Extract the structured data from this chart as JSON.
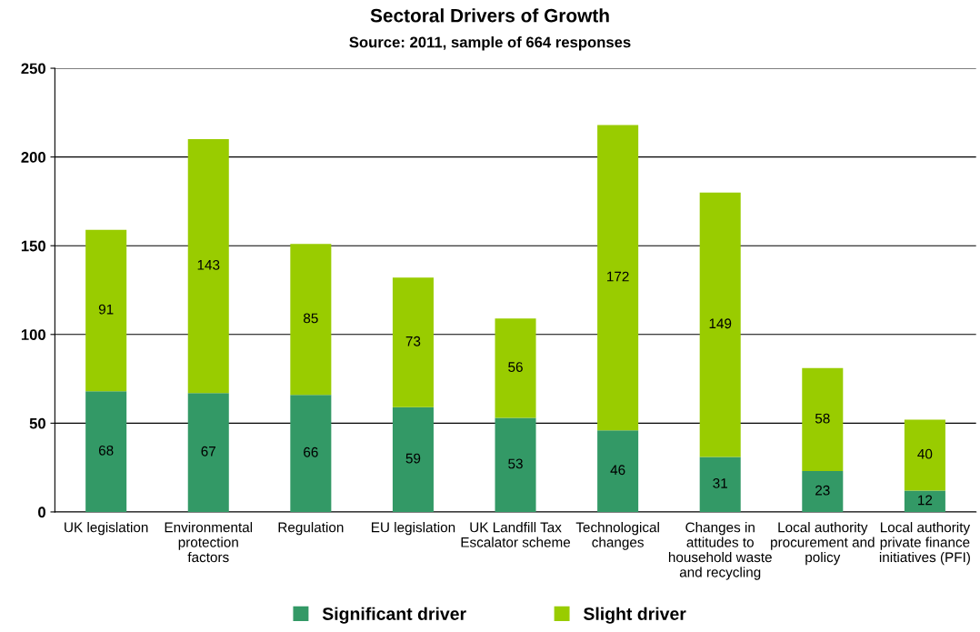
{
  "chart_data": {
    "type": "bar",
    "title": "Sectoral Drivers of Growth",
    "subtitle": "Source: 2011, sample of 664 responses",
    "categories": [
      "UK legislation",
      "Environmental protection factors",
      "Regulation",
      "EU legislation",
      "UK Landfill Tax Escalator scheme",
      "Technological changes",
      "Changes in attitudes to household waste and recycling",
      "Local authority procurement and policy",
      "Local authority private finance initiatives (PFI)"
    ],
    "series": [
      {
        "name": "Significant driver",
        "color": "#339966",
        "values": [
          68,
          67,
          66,
          59,
          53,
          46,
          31,
          23,
          12
        ]
      },
      {
        "name": "Slight driver",
        "color": "#99cc00",
        "values": [
          91,
          143,
          85,
          73,
          56,
          172,
          149,
          58,
          40
        ]
      }
    ],
    "stacked": true,
    "data_labels": true,
    "ylim": [
      0,
      250
    ],
    "yticks": [
      0,
      50,
      100,
      150,
      200,
      250
    ],
    "grid": "y",
    "legend": "bottom"
  }
}
